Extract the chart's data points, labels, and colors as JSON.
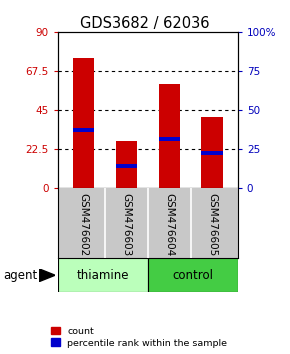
{
  "title": "GDS3682 / 62036",
  "samples": [
    "GSM476602",
    "GSM476603",
    "GSM476604",
    "GSM476605"
  ],
  "red_values": [
    75,
    27,
    60,
    41
  ],
  "blue_values": [
    37,
    14,
    31,
    22
  ],
  "left_yticks": [
    0,
    22.5,
    45,
    67.5,
    90
  ],
  "left_ylim": [
    0,
    90
  ],
  "right_yticks": [
    0,
    25,
    50,
    75,
    100
  ],
  "right_ylim": [
    0,
    100
  ],
  "bar_color": "#cc0000",
  "blue_color": "#0000cc",
  "left_tick_color": "#cc0000",
  "right_tick_color": "#0000bb",
  "group_labels": [
    "thiamine",
    "control"
  ],
  "group_light_color": "#bbffbb",
  "group_dark_color": "#44cc44",
  "agent_label": "agent",
  "legend_red": "count",
  "legend_blue": "percentile rank within the sample",
  "bar_width": 0.5,
  "background_color": "#ffffff",
  "label_area_color": "#c8c8c8"
}
